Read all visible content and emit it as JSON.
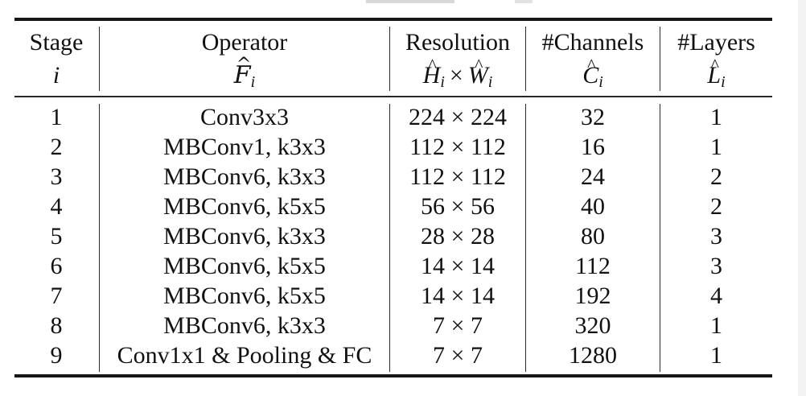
{
  "table": {
    "headers": {
      "stage": {
        "label": "Stage",
        "symbol": "i"
      },
      "operator": {
        "label": "Operator",
        "symbol": "F",
        "sub": "i"
      },
      "resolution": {
        "label": "Resolution",
        "symbol_h": "H",
        "sub_h": "i",
        "times": "×",
        "symbol_w": "W",
        "sub_w": "i"
      },
      "channels": {
        "label": "#Channels",
        "symbol": "C",
        "sub": "i"
      },
      "layers": {
        "label": "#Layers",
        "symbol": "L",
        "sub": "i"
      }
    },
    "rows": [
      {
        "stage": "1",
        "operator": "Conv3x3",
        "resolution": "224 × 224",
        "channels": "32",
        "layers": "1"
      },
      {
        "stage": "2",
        "operator": "MBConv1, k3x3",
        "resolution": "112 × 112",
        "channels": "16",
        "layers": "1"
      },
      {
        "stage": "3",
        "operator": "MBConv6, k3x3",
        "resolution": "112 × 112",
        "channels": "24",
        "layers": "2"
      },
      {
        "stage": "4",
        "operator": "MBConv6, k5x5",
        "resolution": "56 × 56",
        "channels": "40",
        "layers": "2"
      },
      {
        "stage": "5",
        "operator": "MBConv6, k3x3",
        "resolution": "28 × 28",
        "channels": "80",
        "layers": "3"
      },
      {
        "stage": "6",
        "operator": "MBConv6, k5x5",
        "resolution": "14 × 14",
        "channels": "112",
        "layers": "3"
      },
      {
        "stage": "7",
        "operator": "MBConv6, k5x5",
        "resolution": "14 × 14",
        "channels": "192",
        "layers": "4"
      },
      {
        "stage": "8",
        "operator": "MBConv6, k3x3",
        "resolution": "7 × 7",
        "channels": "320",
        "layers": "1"
      },
      {
        "stage": "9",
        "operator": "Conv1x1 & Pooling & FC",
        "resolution": "7 × 7",
        "channels": "1280",
        "layers": "1"
      }
    ]
  }
}
